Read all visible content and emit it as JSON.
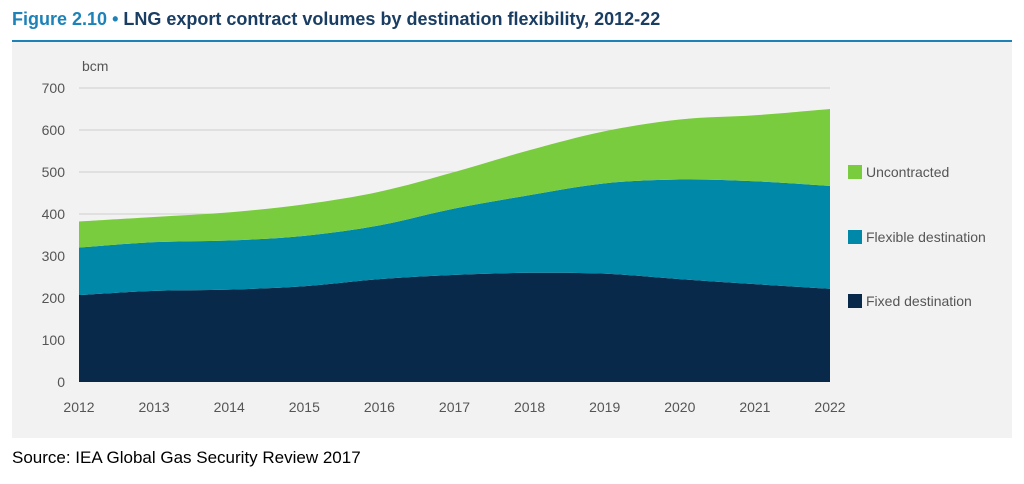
{
  "figure": {
    "number": "Figure 2.10",
    "bullet": "•",
    "title": "LNG export contract volumes by destination flexibility, 2012-22"
  },
  "source": "Source: IEA Global Gas Security Review 2017",
  "colors": {
    "fixed": "#08294a",
    "flexible": "#0088a8",
    "uncontracted": "#79cc3d",
    "panel": "#f2f2f2",
    "title_blue": "#1c82b8"
  },
  "chart_data": {
    "type": "area",
    "stacked": true,
    "ylabel": "bcm",
    "ylim": [
      0,
      700
    ],
    "yticks": [
      0,
      100,
      200,
      300,
      400,
      500,
      600,
      700
    ],
    "categories": [
      "2012",
      "2013",
      "2014",
      "2015",
      "2016",
      "2017",
      "2018",
      "2019",
      "2020",
      "2021",
      "2022"
    ],
    "series": [
      {
        "name": "Fixed destination",
        "color": "#08294a",
        "values": [
          207,
          217,
          220,
          228,
          245,
          255,
          260,
          258,
          245,
          233,
          222
        ]
      },
      {
        "name": "Flexible destination",
        "color": "#0088a8",
        "values": [
          113,
          116,
          117,
          120,
          128,
          158,
          185,
          215,
          237,
          245,
          245
        ]
      },
      {
        "name": "Uncontracted",
        "color": "#79cc3d",
        "values": [
          62,
          60,
          67,
          75,
          80,
          87,
          107,
          124,
          143,
          157,
          183
        ]
      }
    ],
    "legend_position": "right",
    "grid": true
  }
}
